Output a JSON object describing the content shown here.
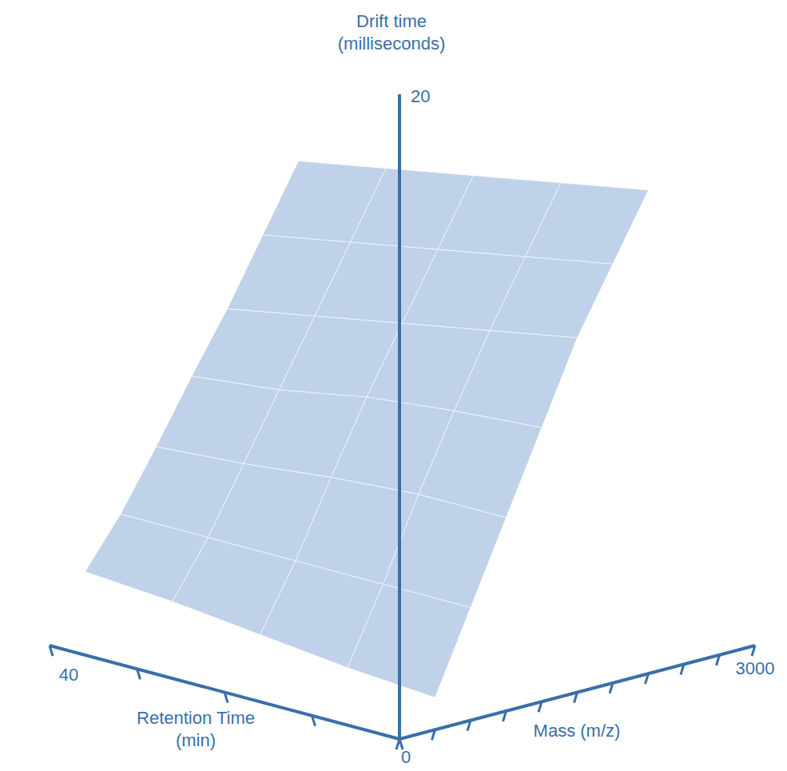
{
  "chart_data": {
    "type": "surface3d",
    "x_label": "Retention Time (min)",
    "y_label": "Mass (m/z)",
    "z_label": "Drift time (milliseconds)",
    "xlim": [
      0,
      40
    ],
    "ylim": [
      0,
      3000
    ],
    "zlim": [
      0,
      20
    ],
    "xticks": [
      {
        "value": 0,
        "label": null
      },
      {
        "value": 10,
        "label": null
      },
      {
        "value": 20,
        "label": null
      },
      {
        "value": 30,
        "label": null
      },
      40
    ],
    "yticks": [
      {
        "value": 0,
        "label": null
      },
      {
        "value": 300,
        "label": null
      },
      {
        "value": 600,
        "label": null
      },
      {
        "value": 900,
        "label": null
      },
      {
        "value": 1200,
        "label": null
      },
      {
        "value": 1500,
        "label": null
      },
      {
        "value": 1800,
        "label": null
      },
      {
        "value": 2100,
        "label": null
      },
      {
        "value": 2400,
        "label": null
      },
      {
        "value": 2700,
        "label": null
      },
      3000
    ],
    "zticks": [
      0,
      20
    ],
    "x": [
      0,
      10,
      20,
      30,
      40
    ],
    "y": [
      300,
      600,
      900,
      1200,
      1500,
      1800,
      2100
    ],
    "z": [
      [
        1,
        3.5,
        6,
        8.5,
        11,
        13,
        15
      ],
      [
        1.2,
        3.5,
        6,
        8.3,
        10.5,
        12.5,
        14.5
      ],
      [
        1.5,
        3.5,
        5.8,
        8,
        10,
        12,
        14
      ],
      [
        1.8,
        3.5,
        5.5,
        7.5,
        9.5,
        11.5,
        13.5
      ],
      [
        2,
        3.5,
        5.3,
        7.2,
        9,
        11,
        13
      ]
    ],
    "color": "#a9c3e2"
  }
}
